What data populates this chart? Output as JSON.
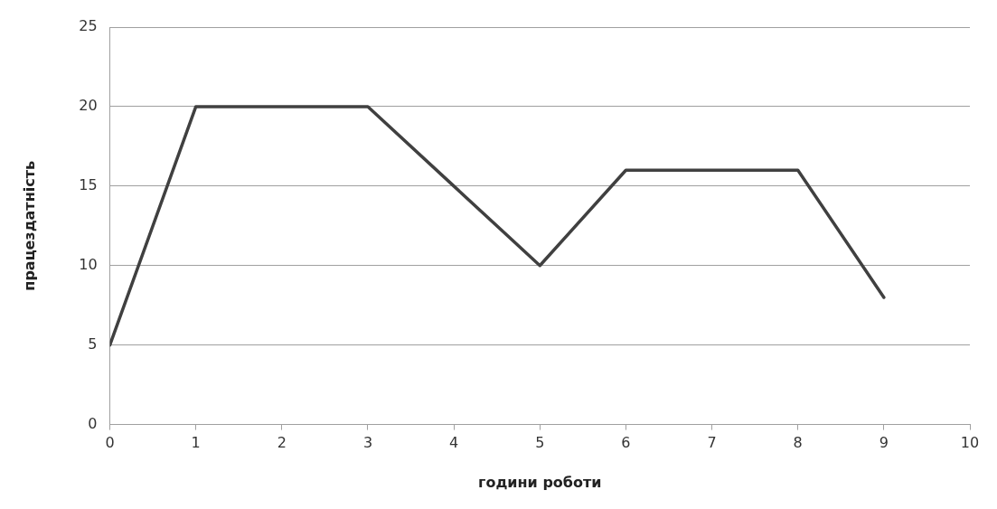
{
  "chart_data": {
    "type": "line",
    "xlabel": "години роботи",
    "ylabel": "працездатність",
    "x": [
      0,
      1,
      2,
      3,
      4,
      5,
      6,
      7,
      8,
      9
    ],
    "series": [
      {
        "color": "#404040",
        "values": [
          5,
          20,
          20,
          20,
          15,
          10,
          16,
          16,
          16,
          8
        ]
      }
    ],
    "xlim": [
      0,
      10
    ],
    "xticks": [
      0,
      1,
      2,
      3,
      4,
      5,
      6,
      7,
      8,
      9,
      10
    ],
    "ylim": [
      0,
      25
    ],
    "yticks": [
      0,
      5,
      10,
      15,
      20,
      25
    ],
    "grid": "y",
    "legend": false,
    "marker": "none",
    "line_style": "solid"
  }
}
